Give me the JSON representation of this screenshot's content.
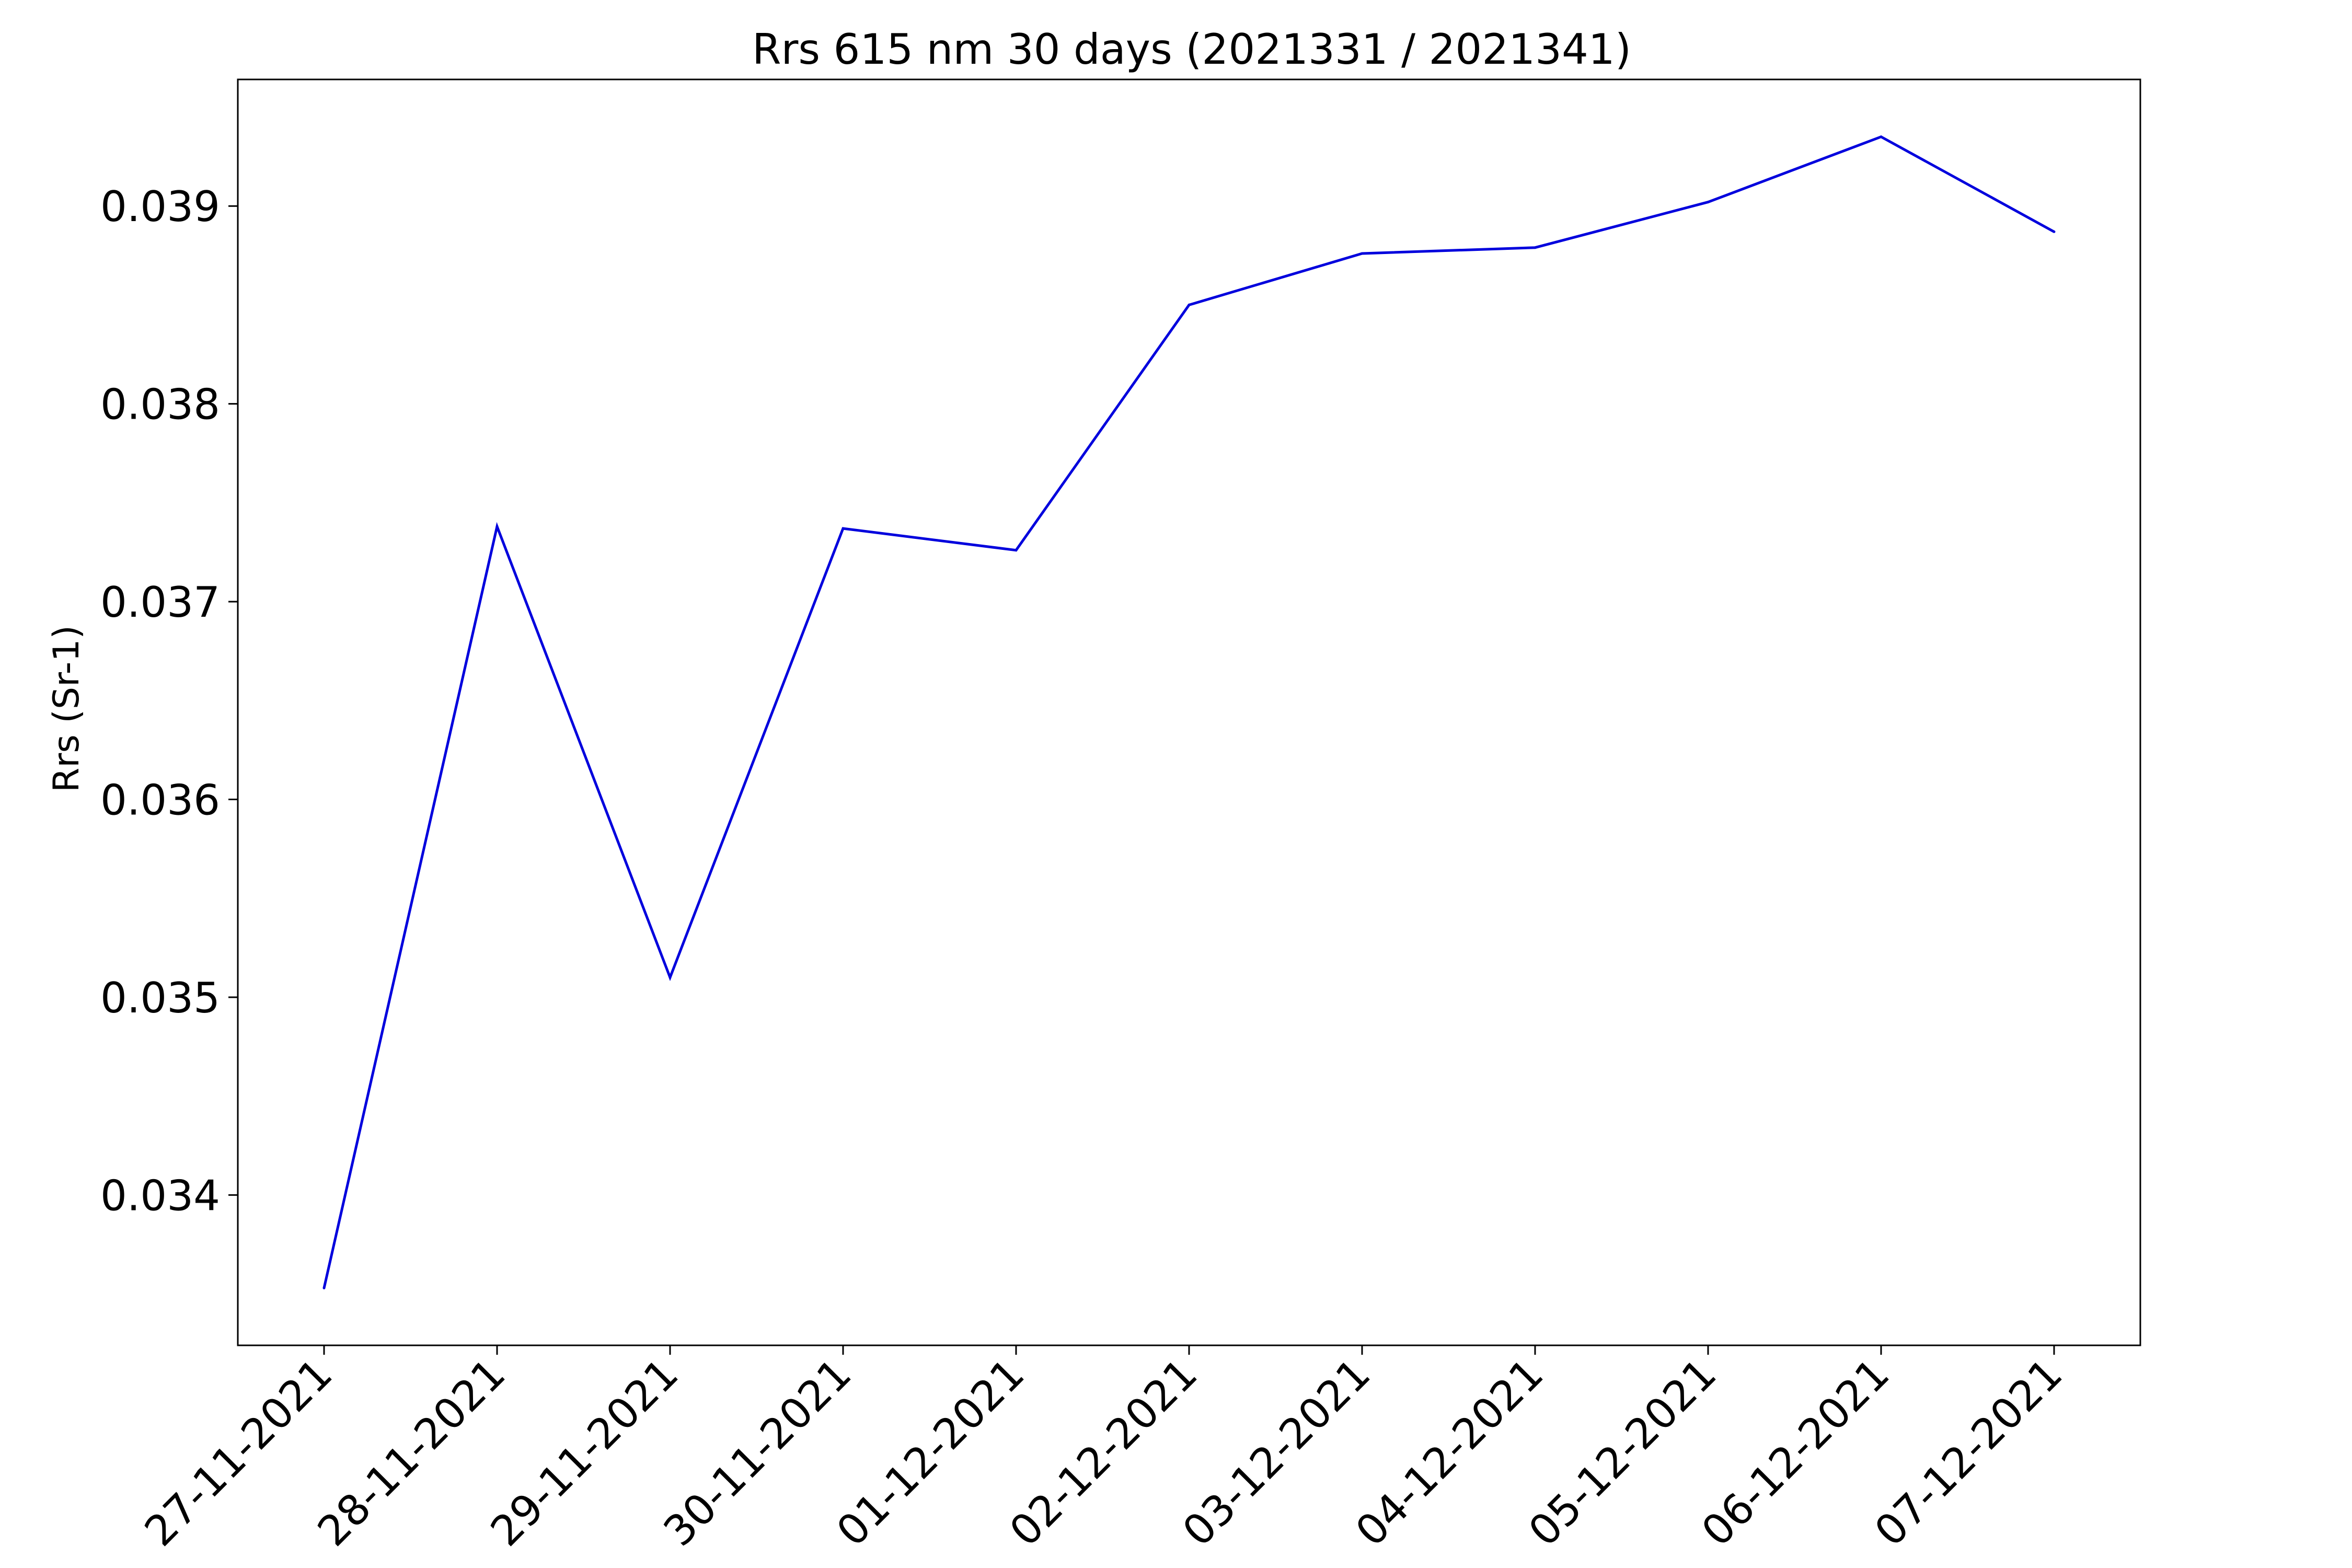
{
  "chart_data": {
    "type": "line",
    "title": "Rrs 615 nm 30 days (2021331 / 2021341)",
    "xlabel": "",
    "ylabel": "Rrs (Sr-1)",
    "x": [
      "27-11-2021",
      "28-11-2021",
      "29-11-2021",
      "30-11-2021",
      "01-12-2021",
      "02-12-2021",
      "03-12-2021",
      "04-12-2021",
      "05-12-2021",
      "06-12-2021",
      "07-12-2021"
    ],
    "series": [
      {
        "name": "",
        "color": "#0000dd",
        "values": [
          0.03353,
          0.03738,
          0.0351,
          0.03737,
          0.03726,
          0.0385,
          0.03876,
          0.03879,
          0.03902,
          0.03935,
          0.03887
        ]
      }
    ],
    "ylim": [
      0.03324,
      0.03964
    ],
    "yticks": [
      0.034,
      0.035,
      0.036,
      0.037,
      0.038,
      0.039
    ],
    "ytick_labels": [
      "0.034",
      "0.035",
      "0.036",
      "0.037",
      "0.038",
      "0.039"
    ],
    "grid": false,
    "legend": "none"
  }
}
